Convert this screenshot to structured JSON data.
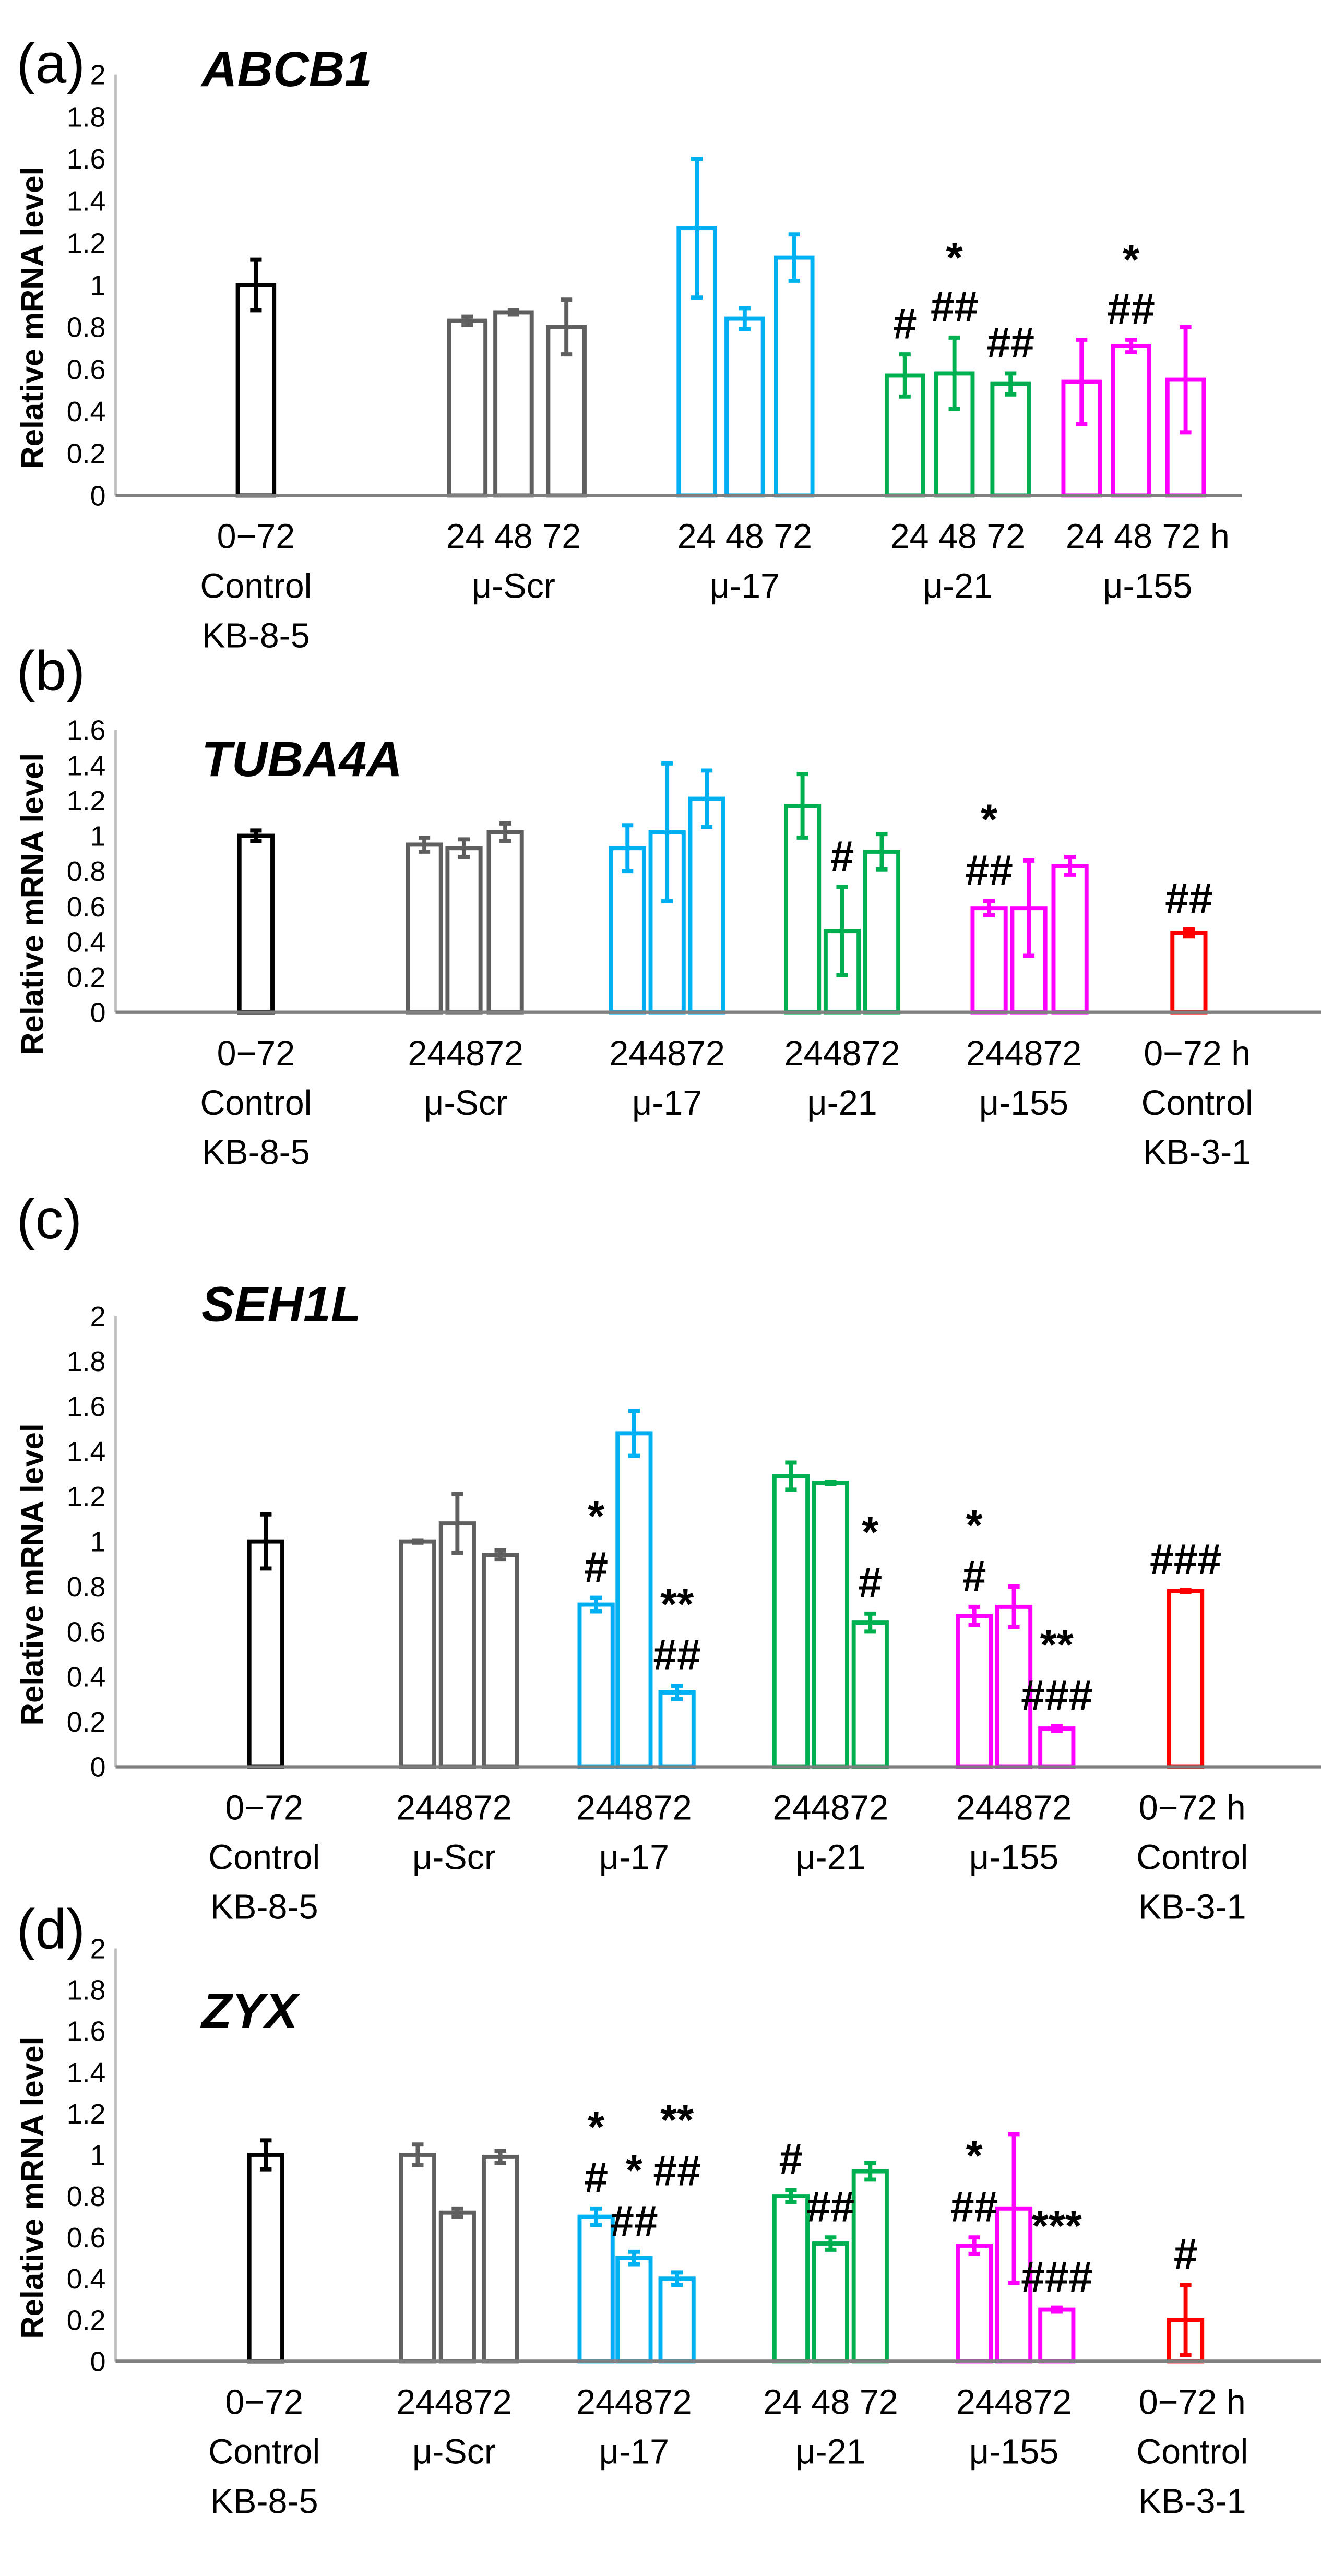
{
  "chart_data": [
    {
      "type": "bar",
      "panel": "(a)",
      "title": "ABCB1",
      "ylabel": "Relative mRNA level",
      "ylim": [
        0,
        2
      ],
      "ystep": 0.2,
      "colors": [
        "#000000",
        "#5f5f5f",
        "#00b0f0",
        "#00b050",
        "#ff00ff"
      ],
      "groups": [
        {
          "time_label": "0−72",
          "name": [
            "Control",
            "KB-8-5"
          ],
          "bars": [
            {
              "value": 1.0,
              "error": 0.12,
              "annotations": []
            }
          ]
        },
        {
          "time_label": "24 48 72",
          "name": [
            "μ-Scr"
          ],
          "bars": [
            {
              "value": 0.83,
              "error": 0.02,
              "annotations": []
            },
            {
              "value": 0.87,
              "error": 0.01,
              "annotations": []
            },
            {
              "value": 0.8,
              "error": 0.13,
              "annotations": []
            }
          ]
        },
        {
          "time_label": "24 48 72",
          "name": [
            "μ-17"
          ],
          "bars": [
            {
              "value": 1.27,
              "error": 0.33,
              "annotations": []
            },
            {
              "value": 0.84,
              "error": 0.05,
              "annotations": []
            },
            {
              "value": 1.13,
              "error": 0.11,
              "annotations": []
            }
          ]
        },
        {
          "time_label": "24 48 72",
          "name": [
            "μ-21"
          ],
          "bars": [
            {
              "value": 0.57,
              "error": 0.1,
              "annotations": [
                "#"
              ]
            },
            {
              "value": 0.58,
              "error": 0.17,
              "annotations": [
                "*",
                "##"
              ]
            },
            {
              "value": 0.53,
              "error": 0.05,
              "annotations": [
                "##"
              ]
            }
          ]
        },
        {
          "time_label": "24 48 72 h",
          "name": [
            "μ-155"
          ],
          "bars": [
            {
              "value": 0.54,
              "error": 0.2,
              "annotations": []
            },
            {
              "value": 0.71,
              "error": 0.03,
              "annotations": [
                "*",
                "##"
              ]
            },
            {
              "value": 0.55,
              "error": 0.25,
              "annotations": []
            }
          ]
        }
      ]
    },
    {
      "type": "bar",
      "panel": "(b)",
      "title": "TUBA4A",
      "ylabel": "Relative mRNA level",
      "ylim": [
        0,
        1.6
      ],
      "ystep": 0.2,
      "colors": [
        "#000000",
        "#5f5f5f",
        "#00b0f0",
        "#00b050",
        "#ff00ff",
        "#ff0000"
      ],
      "groups": [
        {
          "time_label": "0−72",
          "name": [
            "Control",
            "KB-8-5"
          ],
          "bars": [
            {
              "value": 1.0,
              "error": 0.03,
              "annotations": []
            }
          ]
        },
        {
          "time_label": "244872",
          "name": [
            "μ-Scr"
          ],
          "bars": [
            {
              "value": 0.95,
              "error": 0.04,
              "annotations": []
            },
            {
              "value": 0.93,
              "error": 0.05,
              "annotations": []
            },
            {
              "value": 1.02,
              "error": 0.05,
              "annotations": []
            }
          ]
        },
        {
          "time_label": "244872",
          "name": [
            "μ-17"
          ],
          "bars": [
            {
              "value": 0.93,
              "error": 0.13,
              "annotations": []
            },
            {
              "value": 1.02,
              "error": 0.39,
              "annotations": []
            },
            {
              "value": 1.21,
              "error": 0.16,
              "annotations": []
            }
          ]
        },
        {
          "time_label": "244872",
          "name": [
            "μ-21"
          ],
          "bars": [
            {
              "value": 1.17,
              "error": 0.18,
              "annotations": []
            },
            {
              "value": 0.46,
              "error": 0.25,
              "annotations": [
                "#"
              ]
            },
            {
              "value": 0.91,
              "error": 0.1,
              "annotations": []
            }
          ]
        },
        {
          "time_label": "244872",
          "name": [
            "μ-155"
          ],
          "bars": [
            {
              "value": 0.59,
              "error": 0.04,
              "annotations": [
                "*",
                "##"
              ]
            },
            {
              "value": 0.59,
              "error": 0.27,
              "annotations": []
            },
            {
              "value": 0.83,
              "error": 0.05,
              "annotations": []
            }
          ]
        },
        {
          "time_label": "0−72 h",
          "name": [
            "Control",
            "KB-3-1"
          ],
          "bars": [
            {
              "value": 0.45,
              "error": 0.02,
              "annotations": [
                "##"
              ]
            }
          ]
        }
      ]
    },
    {
      "type": "bar",
      "panel": "(c)",
      "title": "SEH1L",
      "ylabel": "Relative mRNA level",
      "ylim": [
        0,
        2
      ],
      "ystep": 0.2,
      "colors": [
        "#000000",
        "#5f5f5f",
        "#00b0f0",
        "#00b050",
        "#ff00ff",
        "#ff0000"
      ],
      "groups": [
        {
          "time_label": "0−72",
          "name": [
            "Control",
            "KB-8-5"
          ],
          "bars": [
            {
              "value": 1.0,
              "error": 0.12,
              "annotations": []
            }
          ]
        },
        {
          "time_label": "244872",
          "name": [
            "μ-Scr"
          ],
          "bars": [
            {
              "value": 1.0,
              "error": 0.005,
              "annotations": []
            },
            {
              "value": 1.08,
              "error": 0.13,
              "annotations": []
            },
            {
              "value": 0.94,
              "error": 0.02,
              "annotations": []
            }
          ]
        },
        {
          "time_label": "244872",
          "name": [
            "μ-17"
          ],
          "bars": [
            {
              "value": 0.72,
              "error": 0.03,
              "annotations": [
                "*",
                "#"
              ]
            },
            {
              "value": 1.48,
              "error": 0.1,
              "annotations": []
            },
            {
              "value": 0.33,
              "error": 0.03,
              "annotations": [
                "**",
                "##"
              ]
            }
          ]
        },
        {
          "time_label": "244872",
          "name": [
            "μ-21"
          ],
          "bars": [
            {
              "value": 1.29,
              "error": 0.06,
              "annotations": []
            },
            {
              "value": 1.26,
              "error": 0.005,
              "annotations": []
            },
            {
              "value": 0.64,
              "error": 0.04,
              "annotations": [
                "*",
                "#"
              ]
            }
          ]
        },
        {
          "time_label": "244872",
          "name": [
            "μ-155"
          ],
          "bars": [
            {
              "value": 0.67,
              "error": 0.04,
              "annotations": [
                "*",
                "#"
              ]
            },
            {
              "value": 0.71,
              "error": 0.09,
              "annotations": []
            },
            {
              "value": 0.17,
              "error": 0.01,
              "annotations": [
                "**",
                "###"
              ]
            }
          ]
        },
        {
          "time_label": "0−72 h",
          "name": [
            "Control",
            "KB-3-1"
          ],
          "bars": [
            {
              "value": 0.78,
              "error": 0.005,
              "annotations": [
                "###"
              ]
            }
          ]
        }
      ]
    },
    {
      "type": "bar",
      "panel": "(d)",
      "title": "ZYX",
      "ylabel": "Relative mRNA level",
      "ylim": [
        0,
        2
      ],
      "ystep": 0.2,
      "colors": [
        "#000000",
        "#5f5f5f",
        "#00b0f0",
        "#00b050",
        "#ff00ff",
        "#ff0000"
      ],
      "groups": [
        {
          "time_label": "0−72",
          "name": [
            "Control",
            "KB-8-5"
          ],
          "bars": [
            {
              "value": 1.0,
              "error": 0.07,
              "annotations": []
            }
          ]
        },
        {
          "time_label": "244872",
          "name": [
            "μ-Scr"
          ],
          "bars": [
            {
              "value": 1.0,
              "error": 0.05,
              "annotations": []
            },
            {
              "value": 0.72,
              "error": 0.02,
              "annotations": []
            },
            {
              "value": 0.99,
              "error": 0.03,
              "annotations": []
            }
          ]
        },
        {
          "time_label": "244872",
          "name": [
            "μ-17"
          ],
          "bars": [
            {
              "value": 0.7,
              "error": 0.04,
              "annotations": [
                "*",
                "#"
              ]
            },
            {
              "value": 0.5,
              "error": 0.03,
              "annotations": [
                "*",
                "##"
              ]
            },
            {
              "value": 0.4,
              "error": 0.03,
              "annotations": [
                "**",
                "##"
              ]
            }
          ]
        },
        {
          "time_label": "24 48 72",
          "name": [
            "μ-21"
          ],
          "bars": [
            {
              "value": 0.8,
              "error": 0.03,
              "annotations": [
                "#"
              ]
            },
            {
              "value": 0.57,
              "error": 0.03,
              "annotations": [
                "##"
              ]
            },
            {
              "value": 0.92,
              "error": 0.04,
              "annotations": []
            }
          ]
        },
        {
          "time_label": "244872",
          "name": [
            "μ-155"
          ],
          "bars": [
            {
              "value": 0.56,
              "error": 0.04,
              "annotations": [
                "*",
                "##"
              ]
            },
            {
              "value": 0.74,
              "error": 0.36,
              "annotations": []
            },
            {
              "value": 0.25,
              "error": 0.01,
              "annotations": [
                "***",
                "###"
              ]
            }
          ]
        },
        {
          "time_label": "0−72 h",
          "name": [
            "Control",
            "KB-3-1"
          ],
          "bars": [
            {
              "value": 0.2,
              "error": 0.17,
              "annotations": [
                "#"
              ]
            }
          ]
        }
      ]
    }
  ]
}
